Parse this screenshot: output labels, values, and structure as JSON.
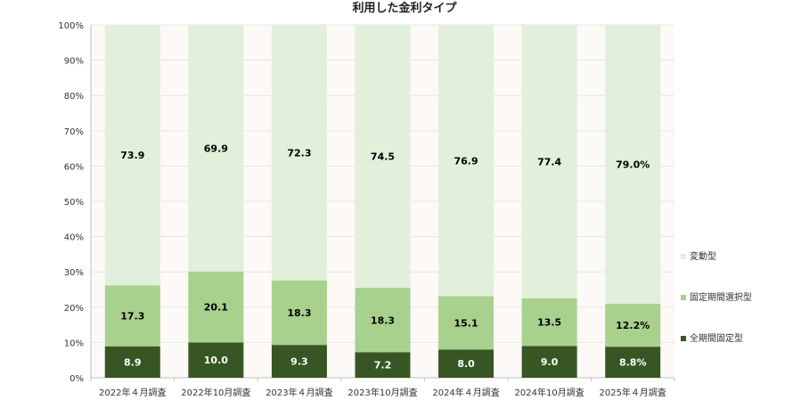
{
  "chart_data": {
    "type": "bar",
    "stacked": true,
    "title": "利用した金利タイプ",
    "xlabel": "",
    "ylabel": "",
    "ylim": [
      0,
      100
    ],
    "y_tick_labels": [
      "0%",
      "10%",
      "20%",
      "30%",
      "40%",
      "50%",
      "60%",
      "70%",
      "80%",
      "90%",
      "100%"
    ],
    "categories": [
      "2022年４月調査",
      "2022年10月調査",
      "2023年４月調査",
      "2023年10月調査",
      "2024年４月調査",
      "2024年10月調査",
      "2025年４月調査"
    ],
    "series": [
      {
        "name": "全期間固定型",
        "color": "#375623",
        "label_color": "#ffffff",
        "values": [
          8.9,
          10.0,
          9.3,
          7.2,
          8.0,
          9.0,
          8.8
        ],
        "data_labels": [
          "8.9",
          "10.0",
          "9.3",
          "7.2",
          "8.0",
          "9.0",
          "8.8%"
        ]
      },
      {
        "name": "固定期間選択型",
        "color": "#a9d18e",
        "label_color": "#000000",
        "values": [
          17.3,
          20.1,
          18.3,
          18.3,
          15.1,
          13.5,
          12.2
        ],
        "data_labels": [
          "17.3",
          "20.1",
          "18.3",
          "18.3",
          "15.1",
          "13.5",
          "12.2%"
        ]
      },
      {
        "name": "変動型",
        "color": "#e2efda",
        "label_color": "#000000",
        "values": [
          73.9,
          69.9,
          72.3,
          74.5,
          76.9,
          77.4,
          79.0
        ],
        "data_labels": [
          "73.9",
          "69.9",
          "72.3",
          "74.5",
          "76.9",
          "77.4",
          "79.0%"
        ]
      }
    ],
    "legend": {
      "placement": "right",
      "order": [
        "変動型",
        "固定期間選択型",
        "全期間固定型"
      ]
    },
    "colors": {
      "plot_background": "#fcf9f7",
      "grid": "#e6e6e6",
      "axis": "#bfbfbf"
    },
    "grid": true
  }
}
